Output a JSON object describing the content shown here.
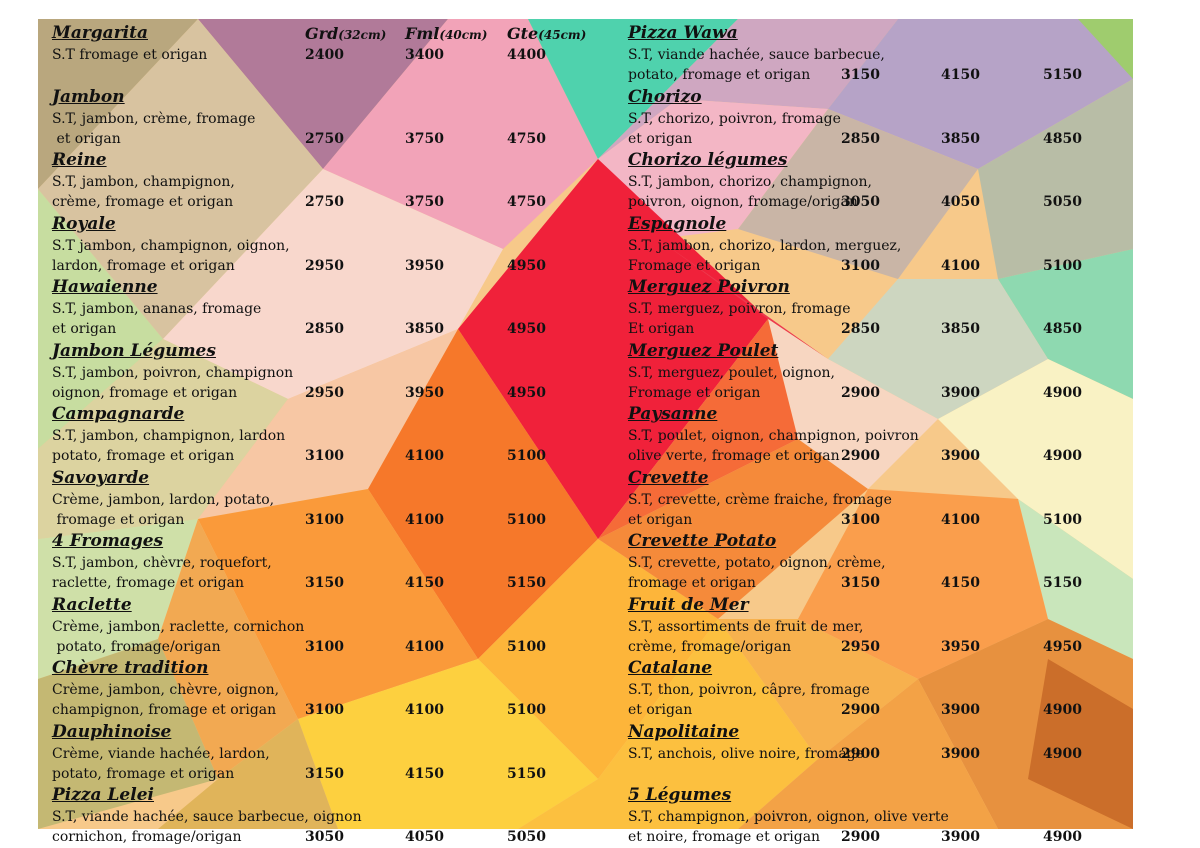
{
  "headers": {
    "grd": "Grd",
    "grd_size": "(32cm)",
    "fml": "Fml",
    "fml_size": "(40cm)",
    "gte": "Gte",
    "gte_size": "(45cm)"
  },
  "colors": {
    "text": "#111111",
    "accent_red": "#f0213a",
    "orange": "#f57a2a",
    "yellow": "#fcd54a",
    "pink": "#f4a8b6",
    "green": "#b8e0a0",
    "teal": "#4ed3ac",
    "mauve": "#b48aa6"
  },
  "left_pizzas": [
    {
      "name": "Margarita",
      "desc": [
        "S.T fromage et origan"
      ],
      "prices": [
        "2400",
        "3400",
        "4400"
      ]
    },
    {
      "name": "Jambon",
      "desc": [
        "S.T, jambon, crème, fromage",
        " et origan"
      ],
      "prices": [
        "2750",
        "3750",
        "4750"
      ]
    },
    {
      "name": "Reine",
      "desc": [
        "S.T, jambon, champignon,",
        "crème, fromage et origan"
      ],
      "prices": [
        "2750",
        "3750",
        "4750"
      ]
    },
    {
      "name": "Royale",
      "desc": [
        "S.T jambon, champignon, oignon,",
        "lardon, fromage et origan"
      ],
      "prices": [
        "2950",
        "3950",
        "4950"
      ]
    },
    {
      "name": "Hawaienne",
      "desc": [
        "S.T, jambon, ananas, fromage",
        "et origan"
      ],
      "prices": [
        "2850",
        "3850",
        "4950"
      ]
    },
    {
      "name": "Jambon Légumes",
      "desc": [
        "S.T, jambon, poivron, champignon",
        "oignon, fromage et origan"
      ],
      "prices": [
        "2950",
        "3950",
        "4950"
      ]
    },
    {
      "name": "Campagnarde",
      "desc": [
        "S.T, jambon, champignon, lardon",
        "potato, fromage et origan"
      ],
      "prices": [
        "3100",
        "4100",
        "5100"
      ]
    },
    {
      "name": "Savoyarde",
      "desc": [
        "Crème, jambon, lardon, potato,",
        " fromage et origan"
      ],
      "prices": [
        "3100",
        "4100",
        "5100"
      ]
    },
    {
      "name": "4 Fromages",
      "desc": [
        "S.T, jambon, chèvre, roquefort,",
        "raclette, fromage et origan"
      ],
      "prices": [
        "3150",
        "4150",
        "5150"
      ]
    },
    {
      "name": "Raclette",
      "desc": [
        "Crème, jambon, raclette, cornichon",
        " potato, fromage/origan"
      ],
      "prices": [
        "3100",
        "4100",
        "5100"
      ]
    },
    {
      "name": "Chèvre tradition",
      "desc": [
        "Crème, jambon, chèvre, oignon,",
        "champignon, fromage et origan"
      ],
      "prices": [
        "3100",
        "4100",
        "5100"
      ]
    },
    {
      "name": "Dauphinoise",
      "desc": [
        "Crème, viande hachée, lardon,",
        "potato, fromage et origan"
      ],
      "prices": [
        "3150",
        "4150",
        "5150"
      ]
    },
    {
      "name": "Pizza Lelei",
      "desc": [
        "S.T, viande hachée, sauce barbecue, oignon",
        "cornichon, fromage/origan"
      ],
      "prices": [
        "3050",
        "4050",
        "5050"
      ]
    }
  ],
  "right_pizzas": [
    {
      "name": "Pizza Wawa",
      "desc": [
        "S.T, viande hachée, sauce barbecue,",
        "potato, fromage et origan"
      ],
      "prices": [
        "3150",
        "4150",
        "5150"
      ]
    },
    {
      "name": "Chorizo",
      "desc": [
        "S.T, chorizo, poivron, fromage",
        "et origan"
      ],
      "prices": [
        "2850",
        "3850",
        "4850"
      ]
    },
    {
      "name": "Chorizo légumes",
      "desc": [
        "S.T, jambon, chorizo, champignon,",
        "poivron, oignon, fromage/origan"
      ],
      "prices": [
        "3050",
        "4050",
        "5050"
      ]
    },
    {
      "name": "Espagnole",
      "desc": [
        "S.T, jambon, chorizo, lardon, merguez,",
        "Fromage et origan"
      ],
      "prices": [
        "3100",
        "4100",
        "5100"
      ]
    },
    {
      "name": "Merguez Poivron",
      "desc": [
        "S.T, merguez, poivron, fromage",
        "Et origan"
      ],
      "prices": [
        "2850",
        "3850",
        "4850"
      ]
    },
    {
      "name": "Merguez Poulet",
      "desc": [
        "S.T, merguez, poulet, oignon,",
        "Fromage et origan"
      ],
      "prices": [
        "2900",
        "3900",
        "4900"
      ]
    },
    {
      "name": "Paysanne",
      "desc": [
        "S.T, poulet, oignon, champignon, poivron",
        "olive verte, fromage et origan"
      ],
      "prices": [
        "2900",
        "3900",
        "4900"
      ]
    },
    {
      "name": "Crevette",
      "desc": [
        "S.T, crevette, crème fraiche, fromage",
        "et origan"
      ],
      "prices": [
        "3100",
        "4100",
        "5100"
      ]
    },
    {
      "name": "Crevette Potato",
      "desc": [
        "S.T, crevette, potato, oignon, crème,",
        "fromage et origan"
      ],
      "prices": [
        "3150",
        "4150",
        "5150"
      ]
    },
    {
      "name": "Fruit de Mer",
      "desc": [
        "S.T, assortiments de fruit de mer,",
        "crème, fromage/origan"
      ],
      "prices": [
        "2950",
        "3950",
        "4950"
      ]
    },
    {
      "name": "Catalane",
      "desc": [
        "S.T, thon, poivron, câpre, fromage",
        "et origan"
      ],
      "prices": [
        "2900",
        "3900",
        "4900"
      ]
    },
    {
      "name": "Napolitaine",
      "desc": [
        "S.T, anchois, olive noire, fromage"
      ],
      "prices": [
        "2900",
        "3900",
        "4900"
      ]
    },
    {
      "name": "5 Légumes",
      "desc": [
        "S.T, champignon, poivron, oignon, olive verte",
        "et noire, fromage et origan"
      ],
      "prices": [
        "2900",
        "3900",
        "4900"
      ]
    }
  ]
}
